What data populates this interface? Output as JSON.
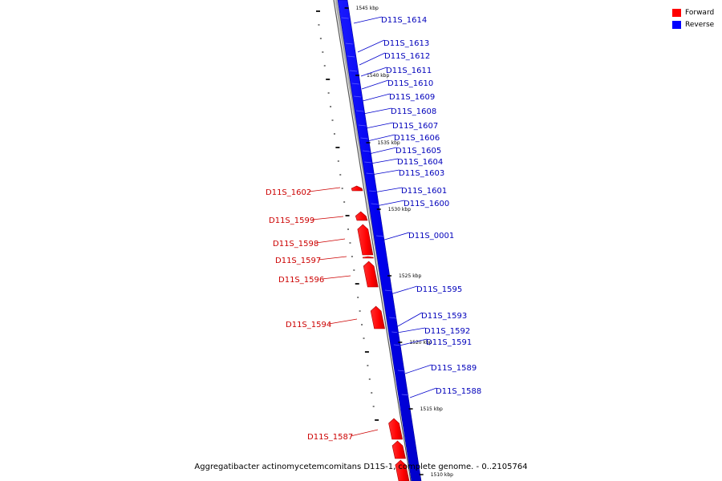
{
  "legend": {
    "forward_label": "Forward",
    "reverse_label": "Reverse",
    "forward_color": "#ff0000",
    "reverse_color": "#0000ff"
  },
  "caption": "Aggregatibacter actinomycetemcomitans D11S-1, complete genome. - 0..2105764",
  "ticks": [
    "1545 kbp",
    "1540 kbp",
    "1535 kbp",
    "1530 kbp",
    "1525 kbp",
    "1520 kbp",
    "1515 kbp",
    "1510 kbp"
  ],
  "reverse_genes": [
    "D11S_1614",
    "D11S_1613",
    "D11S_1612",
    "D11S_1611",
    "D11S_1610",
    "D11S_1609",
    "D11S_1608",
    "D11S_1607",
    "D11S_1606",
    "D11S_1605",
    "D11S_1604",
    "D11S_1603",
    "D11S_1601",
    "D11S_1600",
    "D11S_0001",
    "D11S_1595",
    "D11S_1593",
    "D11S_1592",
    "D11S_1591",
    "D11S_1589",
    "D11S_1588"
  ],
  "forward_genes": [
    "D11S_1602",
    "D11S_1599",
    "D11S_1598",
    "D11S_1597",
    "D11S_1596",
    "D11S_1594",
    "D11S_1587"
  ]
}
